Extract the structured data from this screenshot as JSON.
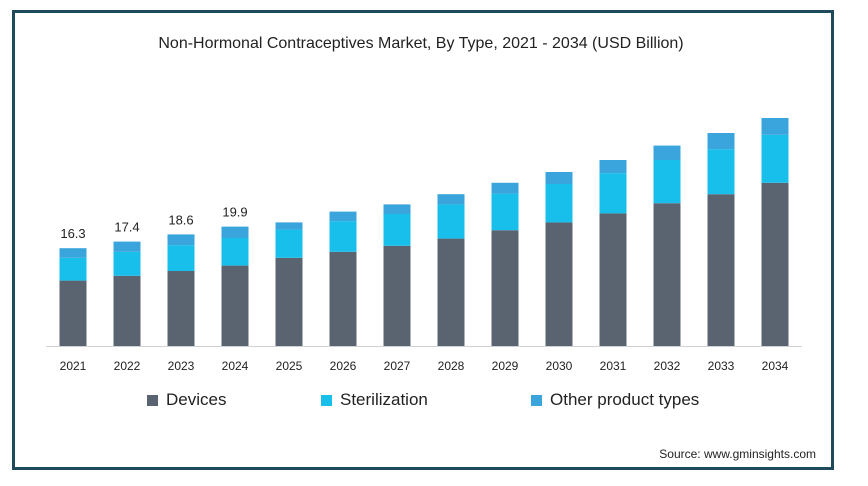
{
  "chart_data": {
    "type": "bar",
    "stacked": true,
    "title": "Non-Hormonal Contraceptives Market, By Type, 2021 - 2034 (USD Billion)",
    "categories": [
      "2021",
      "2022",
      "2023",
      "2024",
      "2025",
      "2026",
      "2027",
      "2028",
      "2029",
      "2030",
      "2031",
      "2032",
      "2033",
      "2034"
    ],
    "series": [
      {
        "name": "Devices",
        "color": "#5a6470",
        "values": [
          10.9,
          11.7,
          12.5,
          13.4,
          14.7,
          15.7,
          16.7,
          17.9,
          19.3,
          20.6,
          22.1,
          23.8,
          25.3,
          27.2
        ]
      },
      {
        "name": "Sterilization",
        "color": "#17bfea",
        "values": [
          3.8,
          4.0,
          4.3,
          4.6,
          4.7,
          5.1,
          5.3,
          5.7,
          6.1,
          6.4,
          6.7,
          7.2,
          7.5,
          8.0
        ]
      },
      {
        "name": "Other product types",
        "color": "#3aa4dc",
        "values": [
          1.6,
          1.7,
          1.8,
          1.9,
          1.2,
          1.6,
          1.6,
          1.7,
          1.8,
          2.0,
          2.2,
          2.4,
          2.7,
          2.8
        ]
      }
    ],
    "data_labels": [
      "16.3",
      "17.4",
      "18.6",
      "19.9"
    ],
    "ylim": [
      0,
      40
    ],
    "grid": false,
    "legend_position": "bottom",
    "source": "Source: www.gminsights.com"
  }
}
